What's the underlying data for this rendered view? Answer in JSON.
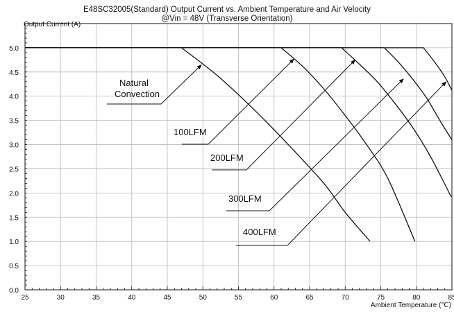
{
  "chart_data": {
    "type": "line",
    "title": "E48SC32005(Standard)  Output Current vs. Ambient Temperature and Air Velocity",
    "subtitle": "@Vin = 48V (Transverse Orientation)",
    "xlabel": "Ambient Temperature (℃)",
    "ylabel": "Output Current (A)",
    "xlim": [
      25,
      85
    ],
    "ylim": [
      0,
      5.5
    ],
    "xticks": [
      25,
      30,
      35,
      40,
      45,
      50,
      55,
      60,
      65,
      70,
      75,
      80,
      85
    ],
    "yticks": [
      "0.0",
      "0.5",
      "1.0",
      "1.5",
      "2.0",
      "2.5",
      "3.0",
      "3.5",
      "4.0",
      "4.5",
      "5.0"
    ],
    "grid": true,
    "series": [
      {
        "name": "Natural Convection",
        "x": [
          25,
          47,
          52,
          57,
          62,
          67,
          70,
          73.5
        ],
        "y": [
          5.0,
          5.0,
          4.43,
          3.75,
          3.0,
          2.2,
          1.6,
          1.0
        ]
      },
      {
        "name": "100LFM",
        "x": [
          25,
          61,
          64,
          67,
          70,
          73,
          76,
          79.8
        ],
        "y": [
          5.0,
          5.0,
          4.62,
          4.15,
          3.6,
          3.0,
          2.3,
          1.0
        ]
      },
      {
        "name": "200LFM",
        "x": [
          25,
          69.5,
          72,
          74.5,
          77,
          79.5,
          82,
          84.9
        ],
        "y": [
          5.0,
          5.0,
          4.66,
          4.3,
          3.85,
          3.35,
          2.75,
          1.92
        ]
      },
      {
        "name": "300LFM",
        "x": [
          25,
          75.5,
          77.5,
          79.5,
          81.5,
          83.5,
          85
        ],
        "y": [
          5.0,
          5.0,
          4.7,
          4.35,
          3.95,
          3.45,
          3.1
        ]
      },
      {
        "name": "400LFM",
        "x": [
          25,
          81,
          82.5,
          84,
          85
        ],
        "y": [
          5.0,
          5.0,
          4.72,
          4.4,
          4.12
        ]
      }
    ],
    "annotations": [
      {
        "lines": [
          "Natural",
          "Convection"
        ],
        "tip": [
          49.8,
          4.65
        ]
      },
      {
        "lines": [
          "100LFM"
        ],
        "tip": [
          62.8,
          4.77
        ]
      },
      {
        "lines": [
          "200LFM"
        ],
        "tip": [
          71.4,
          4.75
        ]
      },
      {
        "lines": [
          "300LFM"
        ],
        "tip": [
          78.2,
          4.36
        ]
      },
      {
        "lines": [
          "400LFM"
        ],
        "tip": [
          84.2,
          4.3
        ]
      }
    ]
  }
}
